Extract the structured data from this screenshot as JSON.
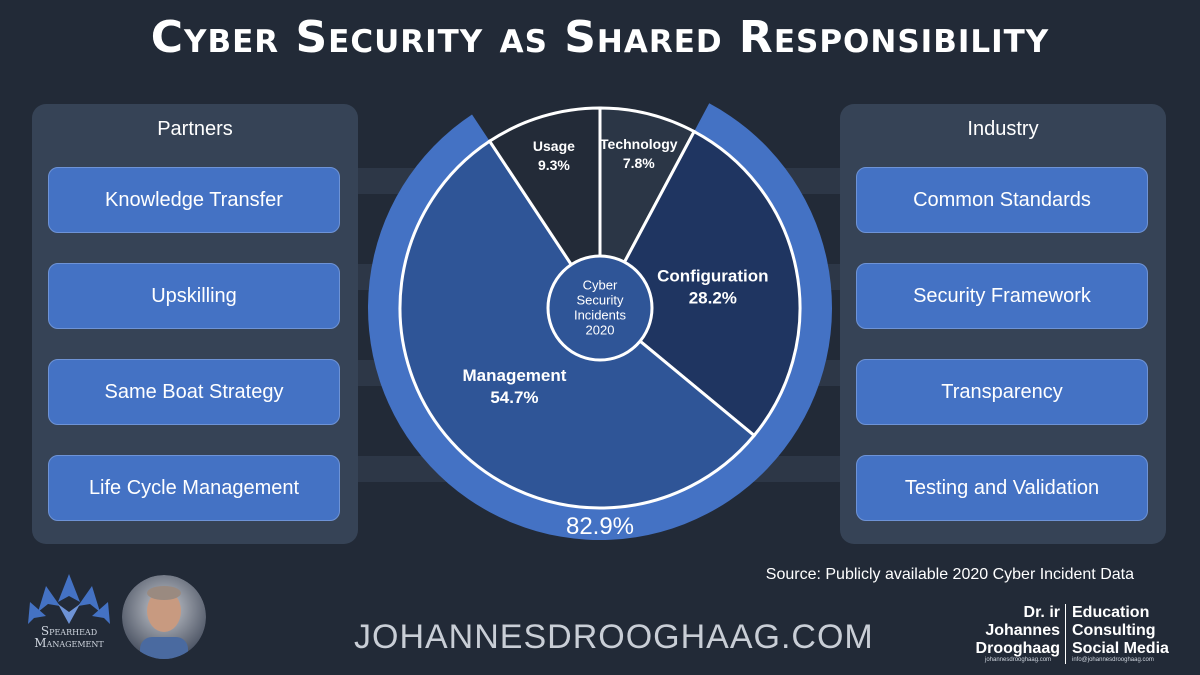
{
  "title": "Cyber Security as Shared Responsibility",
  "left_panel": {
    "title": "Partners",
    "items": [
      "Knowledge Transfer",
      "Upskilling",
      "Same Boat Strategy",
      "Life Cycle Management"
    ]
  },
  "right_panel": {
    "title": "Industry",
    "items": [
      "Common Standards",
      "Security Framework",
      "Transparency",
      "Testing and Validation"
    ]
  },
  "chart_data": {
    "type": "pie",
    "center_label": [
      "Cyber",
      "Security",
      "Incidents",
      "2020"
    ],
    "slices": [
      {
        "label": "Technology",
        "value": 7.8,
        "value_text": "7.8%",
        "color": "#2b3646"
      },
      {
        "label": "Configuration",
        "value": 28.2,
        "value_text": "28.2%",
        "color": "#1f3561"
      },
      {
        "label": "Management",
        "value": 54.7,
        "value_text": "54.7%",
        "color": "#2f5597"
      },
      {
        "label": "Usage",
        "value": 9.3,
        "value_text": "9.3%",
        "color": "#232b38"
      }
    ],
    "outer_ring": {
      "value": 82.9,
      "value_text": "82.9%",
      "color": "#4472c4"
    }
  },
  "source": "Source: Publicly available 2020 Cyber Incident Data",
  "website": "JOHANNESDROOGHAAG.COM",
  "logo_text": [
    "Spearhead",
    "Management"
  ],
  "signature": {
    "name_lines": [
      "Dr. ir",
      "Johannes",
      "Drooghaag"
    ],
    "role_lines": [
      "Education",
      "Consulting",
      "Social Media"
    ],
    "website_small": "johannesdrooghaag.com",
    "email_small": "info@johannesdrooghaag.com"
  }
}
